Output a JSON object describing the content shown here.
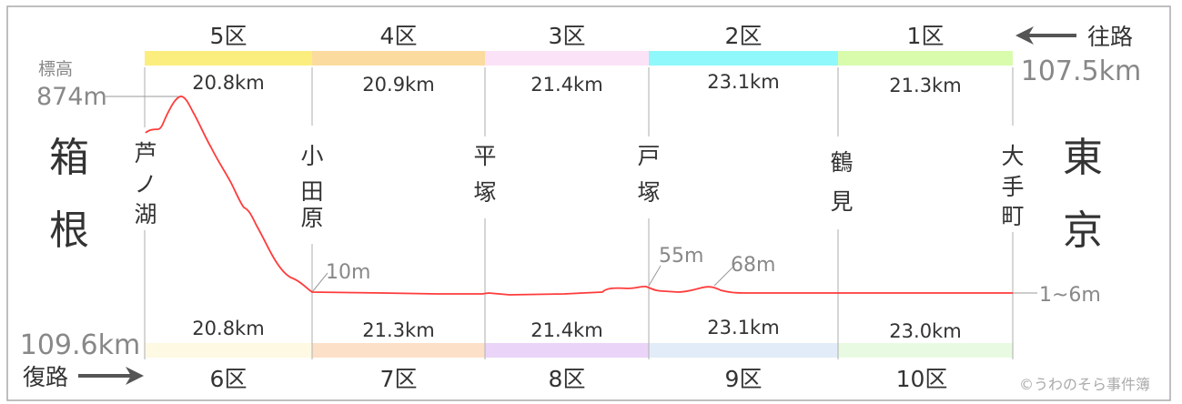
{
  "outbound": {
    "label": "往路",
    "total": "107.5km",
    "sections": [
      {
        "name": "5区",
        "distance": "20.8km",
        "color": "#fbee7e"
      },
      {
        "name": "4区",
        "distance": "20.9km",
        "color": "#fbdc9e"
      },
      {
        "name": "3区",
        "distance": "21.4km",
        "color": "#fce2f6"
      },
      {
        "name": "2区",
        "distance": "23.1km",
        "color": "#8ef8fb"
      },
      {
        "name": "1区",
        "distance": "21.3km",
        "color": "#d8fcac"
      }
    ]
  },
  "return": {
    "label": "復路",
    "total": "109.6km",
    "sections": [
      {
        "name": "6区",
        "distance": "20.8km",
        "color": "#fdf9e2"
      },
      {
        "name": "7区",
        "distance": "21.3km",
        "color": "#fde0c8"
      },
      {
        "name": "8区",
        "distance": "21.4km",
        "color": "#ead4f8"
      },
      {
        "name": "9区",
        "distance": "23.1km",
        "color": "#e2ecf8"
      },
      {
        "name": "10区",
        "distance": "23.0km",
        "color": "#e8fbe2"
      }
    ]
  },
  "cities": {
    "left": [
      "箱",
      "根"
    ],
    "right": [
      "東",
      "京"
    ]
  },
  "places": [
    [
      "芦",
      "ノ",
      "湖"
    ],
    [
      "小",
      "田",
      "原"
    ],
    [
      "平",
      "塚"
    ],
    [
      "戸",
      "塚"
    ],
    [
      "鶴",
      "見"
    ],
    [
      "大",
      "手",
      "町"
    ]
  ],
  "elevation": {
    "label": "標高",
    "max": "874m",
    "odawara": "10m",
    "peak1": "55m",
    "peak2": "68m",
    "tokyo": "1~6m",
    "line_color": "#ff3b3b"
  },
  "credit": "©うわのそら事件簿"
}
